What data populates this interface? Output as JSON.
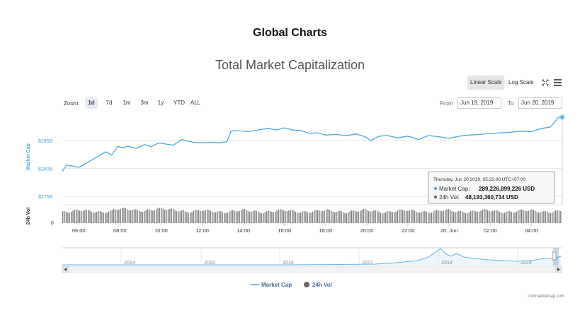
{
  "page_title": "Global Charts",
  "chart_title": "Total Market Capitalization",
  "scale_buttons": {
    "linear": "Linear Scale",
    "log": "Log Scale"
  },
  "icons": {
    "fullscreen": "fullscreen-icon",
    "menu": "hamburger-menu-icon"
  },
  "zoom": {
    "label": "Zoom",
    "options": [
      "1d",
      "7d",
      "1m",
      "3m",
      "1y",
      "YTD",
      "ALL"
    ],
    "selected": "1d"
  },
  "range": {
    "from_label": "From",
    "from_value": "Jun 19, 2019",
    "to_label": "To",
    "to_value": "Jun 20, 2019"
  },
  "tooltip": {
    "date": "Thursday, Jun 20 2019, 05:22:00 UTC+07:00",
    "marketcap_label": "Market Cap:",
    "marketcap_value": "289,226,899,226 USD",
    "vol_label": "24h Vol:",
    "vol_value": "48,193,360,714 USD"
  },
  "credit": "coinmarketcap.com",
  "colors": {
    "line": "#4aa8e0",
    "volume": "#777777",
    "axis_label": "#4aa8e0"
  },
  "chart_data": {
    "type": "line",
    "ylabel": "Market Cap",
    "ylabel_volume": "24h Vol",
    "y_ticks": [
      "$275B",
      "$280B",
      "$285B"
    ],
    "y_tick_values": [
      275,
      280,
      285
    ],
    "volume_ticks": [
      "0"
    ],
    "x_ticks": [
      "06:00",
      "08:00",
      "10:00",
      "12:00",
      "14:00",
      "16:00",
      "18:00",
      "20:00",
      "22:00",
      "20. Jun",
      "02:00",
      "04:00"
    ],
    "xlim": [
      5.2,
      29.5
    ],
    "ylim": [
      273.5,
      289.7
    ],
    "series": [
      {
        "name": "Market Cap",
        "x": [
          5.2,
          5.4,
          5.6,
          6.0,
          6.3,
          6.6,
          7.0,
          7.3,
          7.6,
          7.9,
          8.1,
          8.4,
          8.8,
          9.2,
          9.5,
          9.9,
          10.2,
          10.6,
          11.0,
          11.3,
          11.6,
          12.0,
          12.4,
          12.8,
          13.2,
          13.4,
          13.7,
          14.2,
          14.7,
          15.2,
          15.6,
          16.0,
          16.4,
          16.8,
          17.2,
          17.6,
          18.0,
          18.5,
          19.0,
          19.5,
          19.9,
          20.2,
          20.6,
          21.0,
          21.5,
          22.0,
          22.5,
          23.0,
          23.5,
          24.0,
          24.5,
          25.0,
          25.5,
          26.0,
          26.5,
          27.0,
          27.5,
          28.0,
          28.5,
          28.9,
          29.1,
          29.3,
          29.5
        ],
        "values": [
          279.5,
          280.6,
          280.5,
          280.2,
          280.8,
          281.5,
          282.3,
          283.0,
          282.4,
          284.0,
          283.7,
          284.0,
          283.6,
          284.3,
          283.9,
          284.6,
          284.4,
          284.2,
          285.2,
          284.9,
          284.7,
          284.6,
          284.7,
          284.6,
          284.8,
          286.7,
          286.8,
          286.6,
          286.9,
          287.2,
          286.9,
          287.3,
          286.9,
          286.8,
          286.3,
          286.4,
          286.0,
          286.1,
          285.9,
          286.2,
          285.7,
          285.0,
          285.8,
          285.9,
          285.5,
          285.8,
          285.2,
          285.9,
          285.7,
          285.4,
          285.8,
          286.0,
          286.1,
          286.3,
          286.4,
          286.5,
          286.7,
          286.6,
          287.2,
          287.4,
          288.2,
          289.2,
          289.2
        ]
      },
      {
        "name": "24h Vol",
        "note_values_unit": "billion USD (bars, roughly constant)",
        "values_approx": 48.2
      }
    ],
    "navigator_x_ticks": [
      "2014",
      "2015",
      "2016",
      "2017",
      "2018",
      "2019"
    ],
    "legend": [
      "Market Cap",
      "24h Vol"
    ],
    "legend_position": "bottom-center",
    "grid": true
  }
}
